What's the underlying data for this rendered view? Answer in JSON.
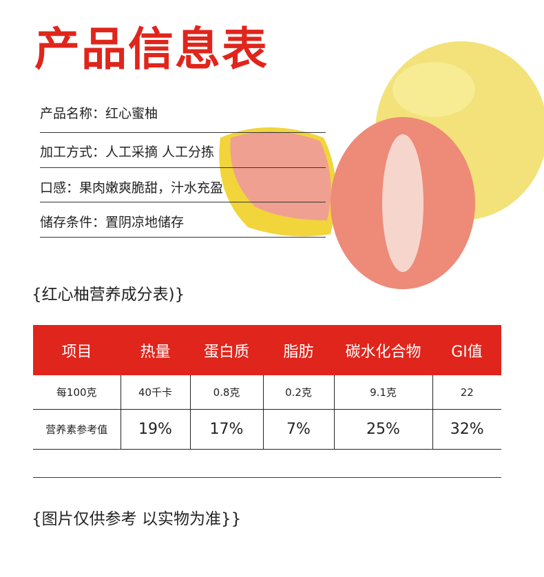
{
  "title": "产品信息表",
  "info": [
    "产品名称：红心蜜柚",
    "加工方式：人工采摘 人工分拣",
    "口感：果肉嫩爽脆甜，汁水充盈",
    "储存条件：置阴凉地储存"
  ],
  "nutrition_title": "{红心柚营养成分表)}",
  "table": {
    "headers": [
      "项目",
      "热量",
      "蛋白质",
      "脂肪",
      "碳水化合物",
      "GI值"
    ],
    "rows": [
      [
        "每100克",
        "40千卡",
        "0.8克",
        "0.2克",
        "9.1克",
        "22"
      ],
      [
        "营养素参考值",
        "19%",
        "17%",
        "7%",
        "25%",
        "32%"
      ]
    ]
  },
  "footer_note": "{图片仅供参考 以实物为准}}",
  "colors": {
    "accent": "#e0251c"
  }
}
